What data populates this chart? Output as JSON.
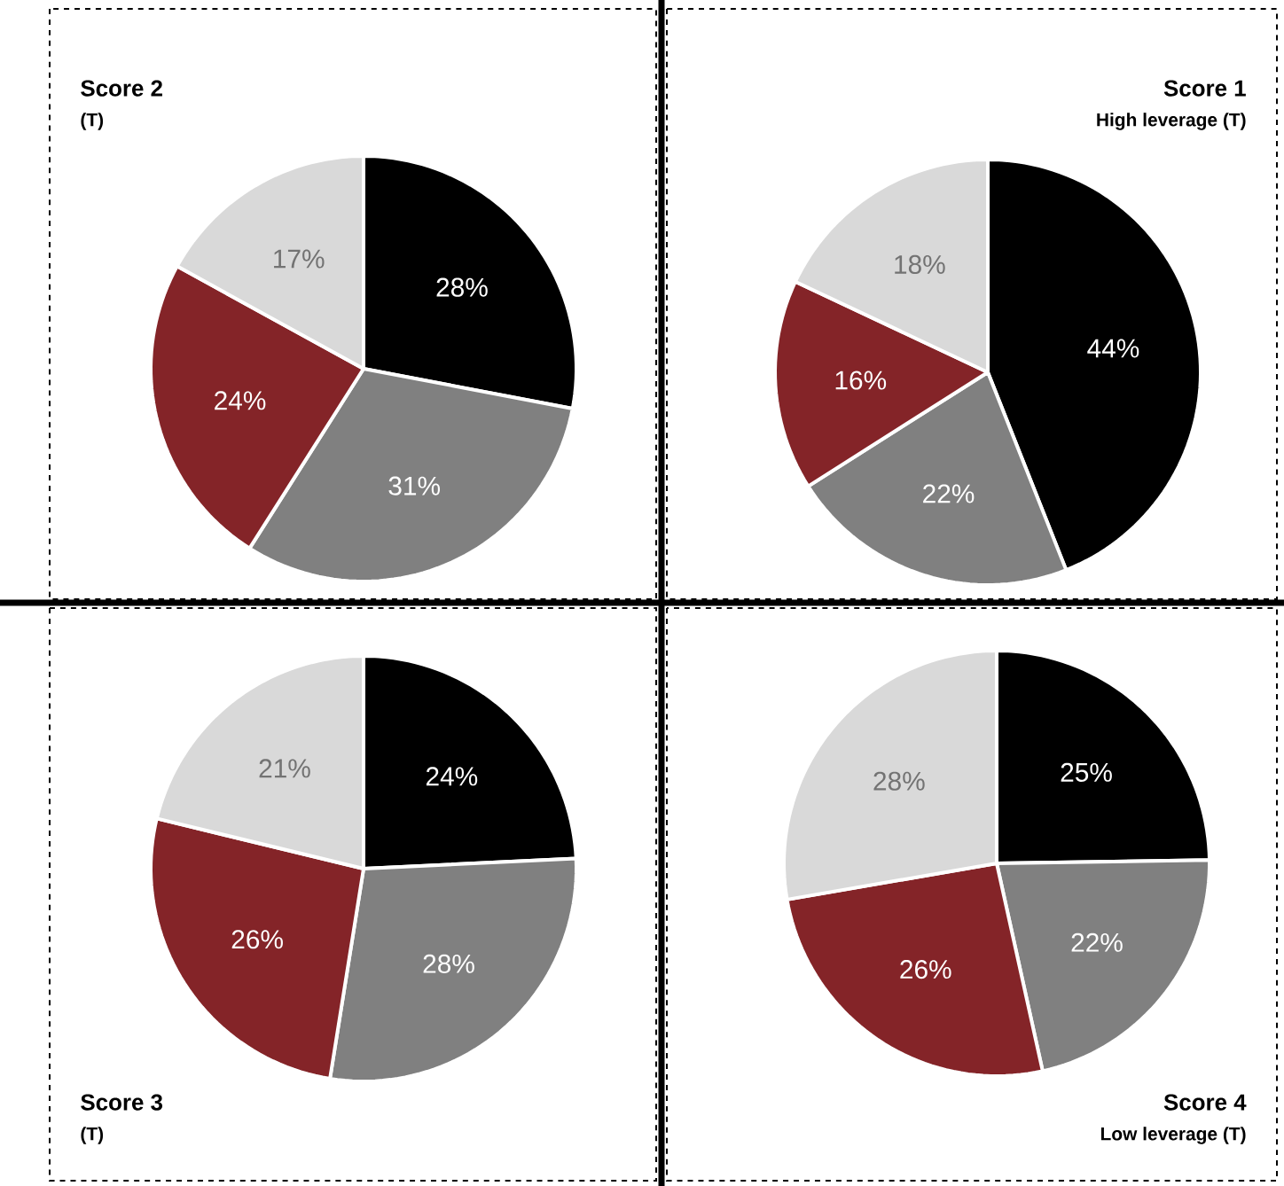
{
  "chart_data": [
    {
      "type": "pie",
      "title": "Score 2",
      "subtitle": "(T)",
      "categories": [
        null,
        null,
        null,
        null
      ],
      "values": [
        28,
        31,
        24,
        17
      ],
      "value_labels": [
        "28%",
        "31%",
        "24%",
        "17%"
      ],
      "colors": [
        "#000000",
        "#808080",
        "#842428",
        "#d9d9d9"
      ]
    },
    {
      "type": "pie",
      "title": "Score 1",
      "subtitle": "High leverage (T)",
      "categories": [
        null,
        null,
        null,
        null
      ],
      "values": [
        44,
        22,
        16,
        18
      ],
      "value_labels": [
        "44%",
        "22%",
        "16%",
        "18%"
      ],
      "colors": [
        "#000000",
        "#808080",
        "#842428",
        "#d9d9d9"
      ]
    },
    {
      "type": "pie",
      "title": "Score 3",
      "subtitle": "(T)",
      "categories": [
        null,
        null,
        null,
        null
      ],
      "values": [
        24,
        28,
        26,
        21
      ],
      "value_labels": [
        "24%",
        "28%",
        "26%",
        "21%"
      ],
      "colors": [
        "#000000",
        "#808080",
        "#842428",
        "#d9d9d9"
      ]
    },
    {
      "type": "pie",
      "title": "Score 4",
      "subtitle": "Low leverage (T)",
      "categories": [
        null,
        null,
        null,
        null
      ],
      "values": [
        25,
        22,
        26,
        28
      ],
      "value_labels": [
        "25%",
        "22%",
        "26%",
        "28%"
      ],
      "colors": [
        "#000000",
        "#808080",
        "#842428",
        "#d9d9d9"
      ]
    }
  ]
}
